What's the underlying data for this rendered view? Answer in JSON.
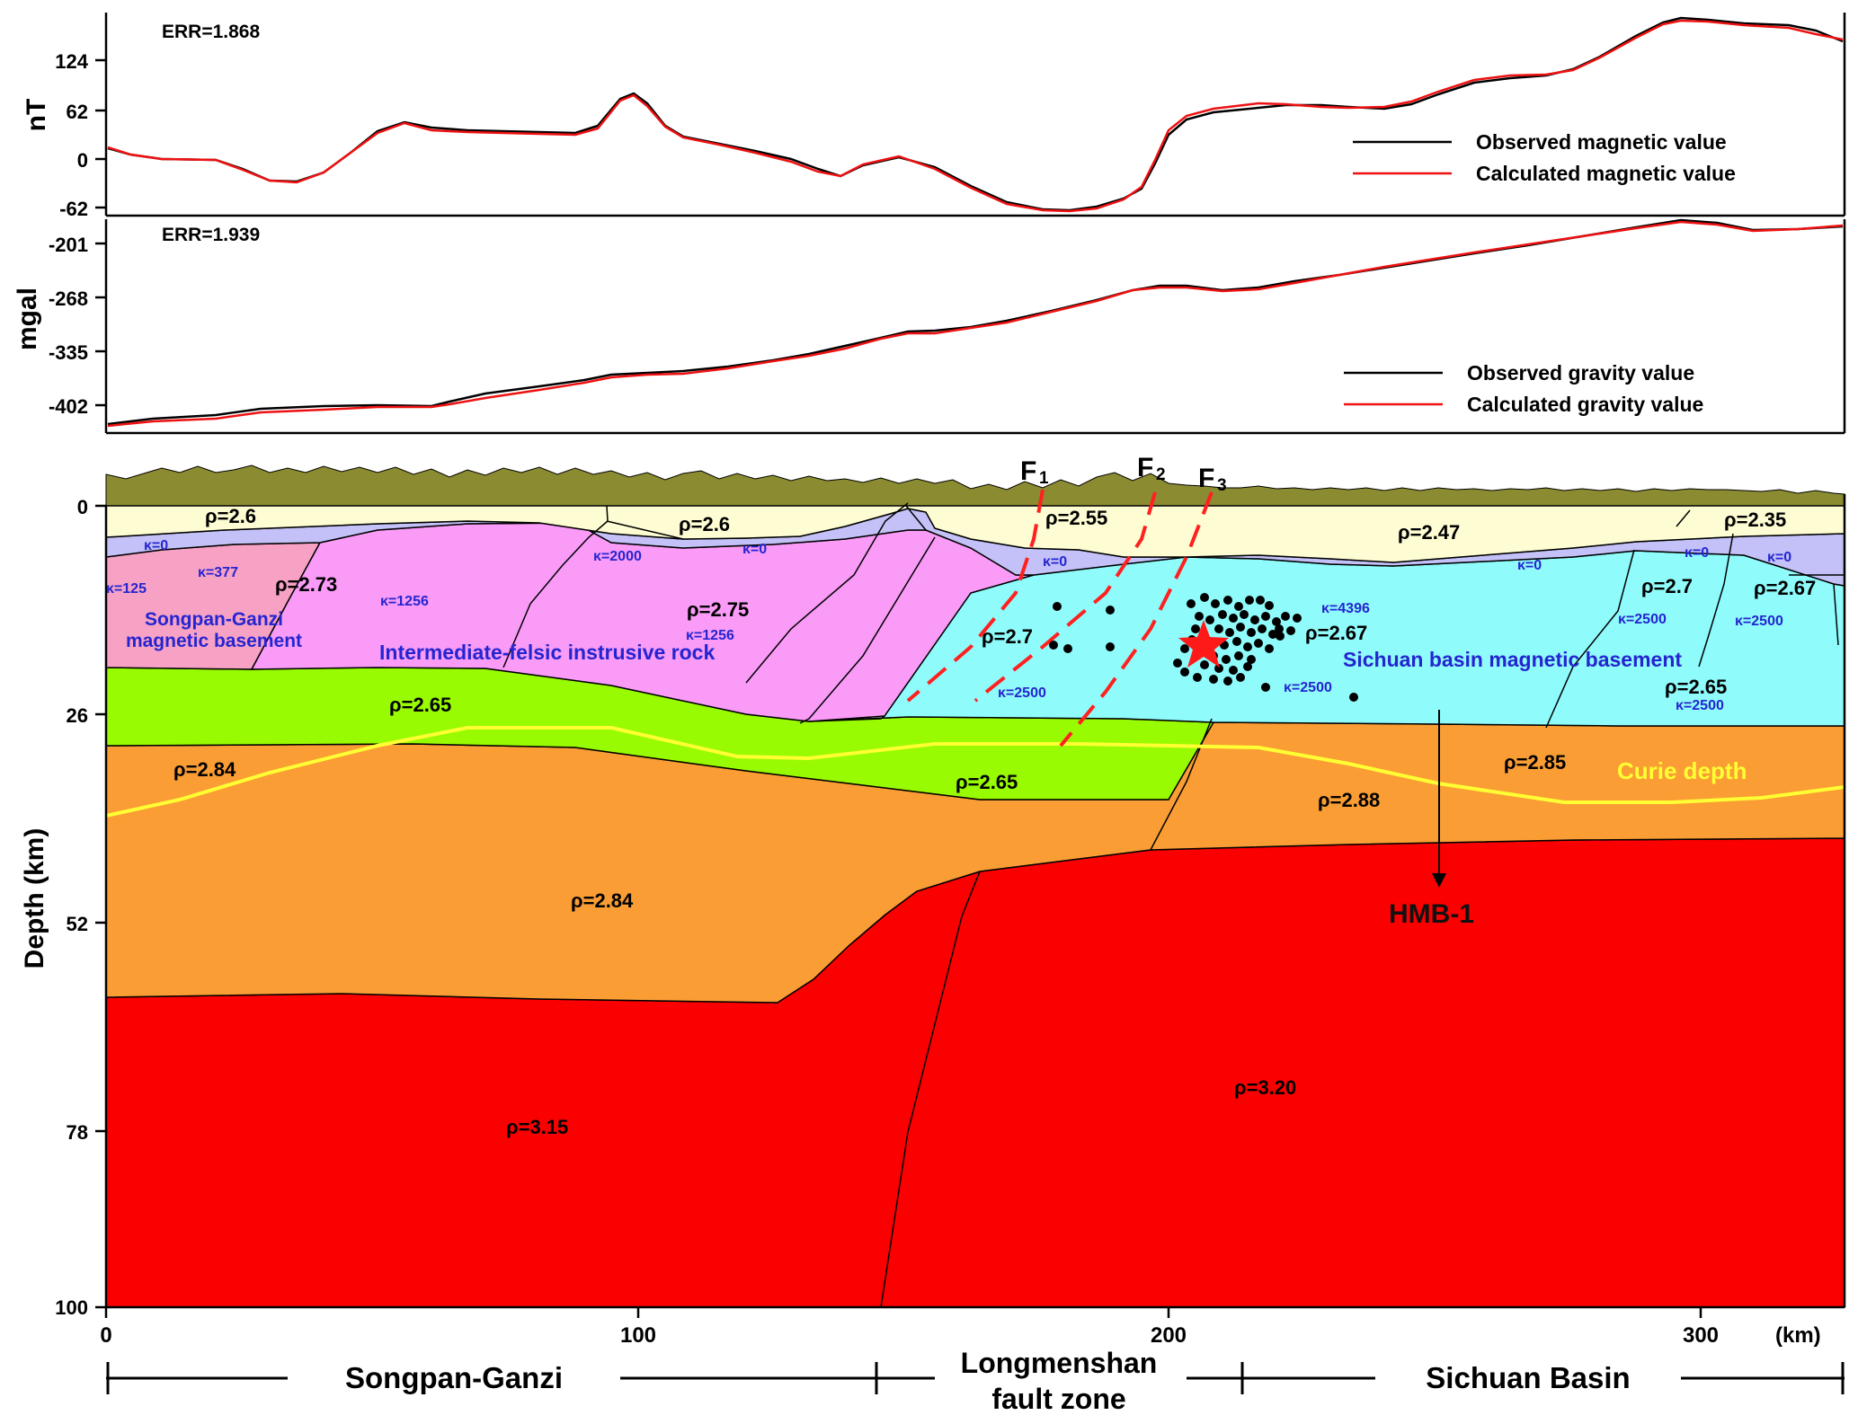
{
  "colors": {
    "topography": "#8b8b32",
    "sediment": "#fdfcd2",
    "nonmagnetic_layer": "#c3c1f7",
    "songpan_basement": "#f7a1c5",
    "intrusive_rock": "#f99bf7",
    "sichuan_basement": "#8ffbfb",
    "middle_crust": "#99fb01",
    "lower_crust": "#fa9d35",
    "mantle": "#fb0000",
    "curie_line": "#ffff33",
    "fault_line": "#ff2020",
    "label_blue": "#2525d0",
    "label_dark": "#111111",
    "observed_line": "#000000",
    "calculated_line": "#ee1111"
  },
  "magnetic_panel": {
    "err": "ERR=1.868",
    "unit": "nT",
    "ticks": [
      "124",
      "62",
      "0",
      "-62"
    ],
    "legend": {
      "observed": "Observed magnetic value",
      "calculated": "Calculated magnetic value"
    }
  },
  "gravity_panel": {
    "err": "ERR=1.939",
    "unit": "mgal",
    "ticks": [
      "-201",
      "-268",
      "-335",
      "-402"
    ],
    "legend": {
      "observed": "Observed gravity value",
      "calculated": "Calculated gravity value"
    }
  },
  "section": {
    "y_axis_label": "Depth (km)",
    "y_ticks": [
      "0",
      "26",
      "52",
      "78",
      "100"
    ],
    "x_ticks": [
      "0",
      "100",
      "200",
      "300"
    ],
    "x_unit": "(km)",
    "faults": [
      {
        "letter": "F",
        "sub": "1"
      },
      {
        "letter": "F",
        "sub": "2"
      },
      {
        "letter": "F",
        "sub": "3"
      }
    ],
    "density_labels": [
      "ρ=2.6",
      "ρ=2.6",
      "ρ=2.55",
      "ρ=2.47",
      "ρ=2.35",
      "ρ=2.73",
      "ρ=2.75",
      "ρ=2.7",
      "ρ=2.67",
      "ρ=2.7",
      "ρ=2.67",
      "ρ=2.65",
      "ρ=2.65",
      "ρ=2.65",
      "ρ=2.84",
      "ρ=2.85",
      "ρ=2.88",
      "ρ=2.84",
      "ρ=3.15",
      "ρ=3.20"
    ],
    "kappa_labels": [
      "κ=0",
      "κ=125",
      "κ=377",
      "κ=1256",
      "κ=2000",
      "κ=0",
      "κ=1256",
      "κ=0",
      "κ=2500",
      "κ=4396",
      "κ=2500",
      "κ=0",
      "κ=0",
      "κ=0",
      "κ=2500",
      "κ=2500",
      "κ=2500"
    ],
    "unit_labels": {
      "songpan_basement": [
        "Songpan-Ganzi",
        "magnetic basement"
      ],
      "intrusive": "Intermediate-felsic  instrusive rock",
      "sichuan_basement": "Sichuan basin magnetic basement",
      "curie": "Curie depth",
      "hmb": "HMB-1"
    }
  },
  "regions": {
    "songpan": "Songpan-Ganzi",
    "longmenshan": [
      "Longmenshan",
      "fault zone"
    ],
    "sichuan": "Sichuan Basin"
  }
}
